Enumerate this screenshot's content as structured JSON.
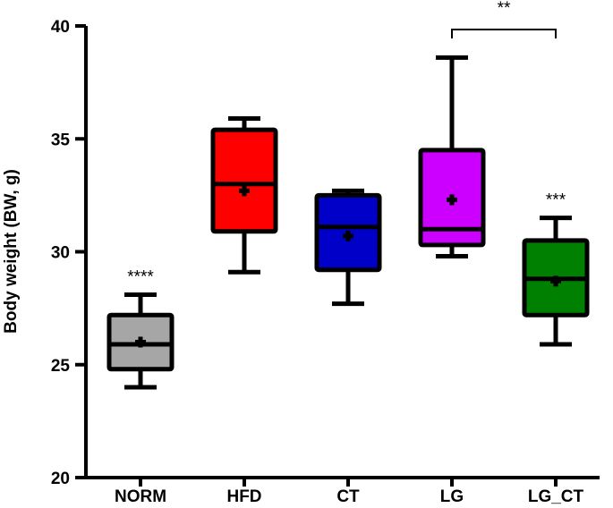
{
  "chart_data": {
    "type": "box",
    "title": "",
    "xlabel": "",
    "ylabel": "Body weight (BW, g)",
    "ylim": [
      20,
      40
    ],
    "yticks": [
      20,
      25,
      30,
      35,
      40
    ],
    "grid": false,
    "categories": [
      "NORM",
      "HFD",
      "CT",
      "LG",
      "LG_CT"
    ],
    "boxes": [
      {
        "category": "NORM",
        "min": 24.0,
        "q1": 24.8,
        "median": 25.9,
        "q3": 27.2,
        "max": 28.1,
        "mean": 26.0,
        "color": "#a6a6a6",
        "annotation": "****"
      },
      {
        "category": "HFD",
        "min": 29.1,
        "q1": 30.9,
        "median": 33.0,
        "q3": 35.4,
        "max": 35.9,
        "mean": 32.7,
        "color": "#ff0000",
        "annotation": ""
      },
      {
        "category": "CT",
        "min": 27.7,
        "q1": 29.2,
        "median": 31.1,
        "q3": 32.5,
        "max": 32.7,
        "mean": 30.7,
        "color": "#0000c8",
        "annotation": ""
      },
      {
        "category": "LG",
        "min": 29.8,
        "q1": 30.3,
        "median": 31.0,
        "q3": 34.5,
        "max": 38.6,
        "mean": 32.3,
        "color": "#cc00ff",
        "annotation": ""
      },
      {
        "category": "LG_CT",
        "min": 25.9,
        "q1": 27.2,
        "median": 28.8,
        "q3": 30.5,
        "max": 31.5,
        "mean": 28.7,
        "color": "#008000",
        "annotation": "***"
      }
    ],
    "comparison": {
      "from": "LG",
      "to": "LG_CT",
      "label": "**"
    }
  }
}
